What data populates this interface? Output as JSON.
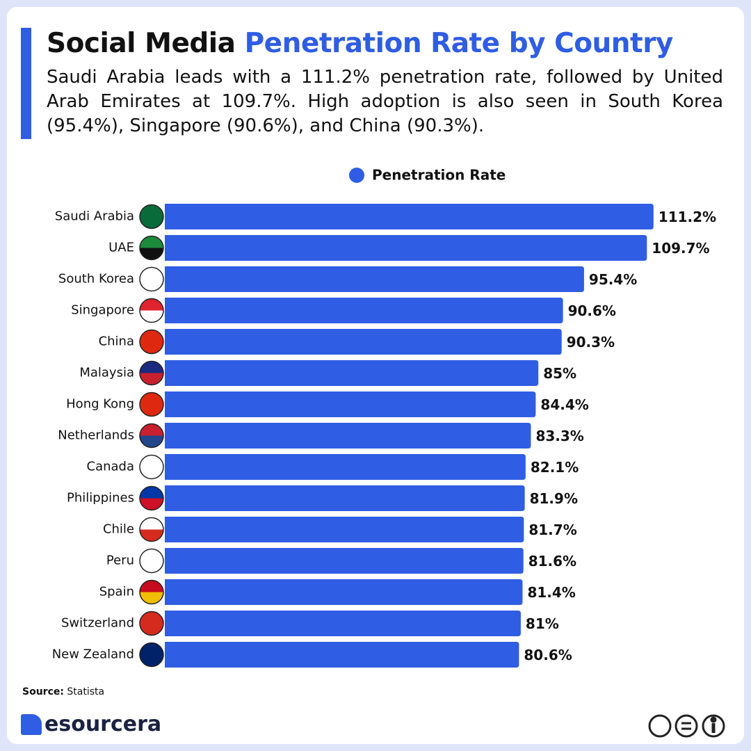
{
  "chart_data": {
    "type": "bar",
    "title": [
      "Social Media",
      "Penetration Rate by Country"
    ],
    "subtitle": "Saudi Arabia leads with a 111.2% penetration rate, followed by United Arab Emirates at 109.7%. High adoption is also seen in South Korea (95.4%), Singapore (90.6%), and China (90.3%).",
    "categories": [
      "Saudi Arabia",
      "UAE",
      "South Korea",
      "Singapore",
      "China",
      "Malaysia",
      "Hong Kong",
      "Netherlands",
      "Canada",
      "Philippines",
      "Chile",
      "Peru",
      "Spain",
      "Switzerland",
      "New Zealand"
    ],
    "series": [
      {
        "name": "Penetration Rate",
        "color": "#2f5de3",
        "values": [
          111.2,
          109.7,
          95.4,
          90.6,
          90.3,
          85,
          84.4,
          83.3,
          82.1,
          81.9,
          81.7,
          81.6,
          81.4,
          81,
          80.6
        ],
        "value_labels": [
          "111.2%",
          "109.7%",
          "95.4%",
          "90.6%",
          "90.3%",
          "85%",
          "84.4%",
          "83.3%",
          "82.1%",
          "81.9%",
          "81.7%",
          "81.6%",
          "81.4%",
          "81%",
          "80.6%"
        ]
      }
    ],
    "source_label": "Source:",
    "source": "Statista",
    "brand": "esourcera"
  }
}
